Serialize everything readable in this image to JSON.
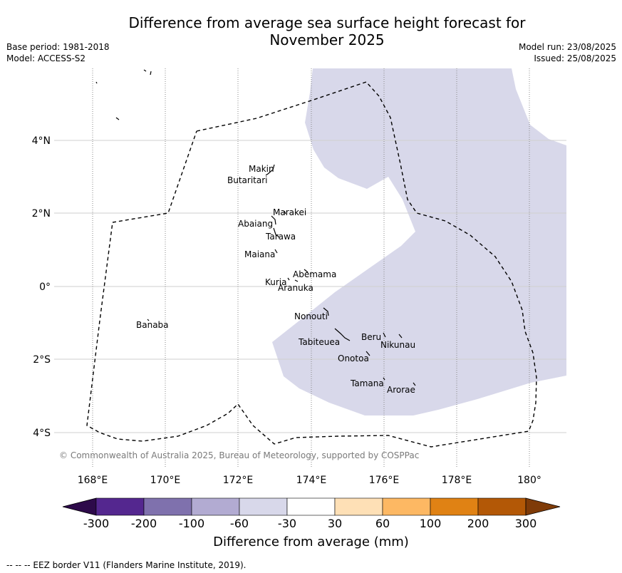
{
  "title_line1": "Difference from average sea surface height forecast for",
  "title_line2": "November 2025",
  "meta_left": {
    "base_period": "Base period: 1981-2018",
    "model": "Model: ACCESS-S2"
  },
  "meta_right": {
    "model_run": "Model run: 23/08/2025",
    "issued": "Issued: 25/08/2025"
  },
  "copyright": "© Commonwealth of Australia 2025, Bureau of Meteorology, supported by COSPPac",
  "eez_note": "--  --  -- EEZ border V11 (Flanders Marine Institute, 2019).",
  "colorbar": {
    "label": "Difference from average (mm)",
    "ticks": [
      "-300",
      "-200",
      "-100",
      "-60",
      "-30",
      "30",
      "60",
      "100",
      "200",
      "300"
    ],
    "colors": [
      "#2d0a4a",
      "#54278f",
      "#7f71ad",
      "#b2abd2",
      "#d8d8ea",
      "#ffffff",
      "#fee0b6",
      "#fdb863",
      "#e08214",
      "#b35806",
      "#7f3b08"
    ]
  },
  "map": {
    "lon_labels": [
      "168°E",
      "170°E",
      "172°E",
      "174°E",
      "176°E",
      "178°E",
      "180°"
    ],
    "lat_labels": [
      "4°N",
      "2°N",
      "0°",
      "2°S",
      "4°S"
    ],
    "anomaly_fill_color": "#d8d8ea",
    "islands": [
      {
        "name": "Makin"
      },
      {
        "name": "Butaritari"
      },
      {
        "name": "Marakei"
      },
      {
        "name": "Abaiang"
      },
      {
        "name": "Tarawa"
      },
      {
        "name": "Maiana"
      },
      {
        "name": "Abemama"
      },
      {
        "name": "Kuria"
      },
      {
        "name": "Aranuka"
      },
      {
        "name": "Banaba"
      },
      {
        "name": "Nonouti"
      },
      {
        "name": "Beru"
      },
      {
        "name": "Nikunau"
      },
      {
        "name": "Tabiteuea"
      },
      {
        "name": "Onotoa"
      },
      {
        "name": "Tamana"
      },
      {
        "name": "Arorae"
      }
    ]
  }
}
